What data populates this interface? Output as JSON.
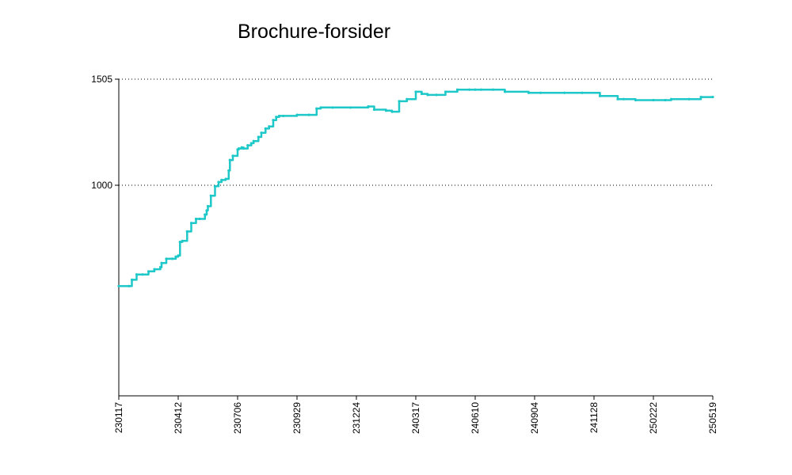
{
  "chart_data": {
    "type": "line",
    "title": "Brochure-forsider",
    "xlabel": "",
    "ylabel": "",
    "x_tick_labels": [
      "230117",
      "230412",
      "230706",
      "230929",
      "231224",
      "240317",
      "240610",
      "240904",
      "241128",
      "250222",
      "250519"
    ],
    "y_tick_labels": [
      "1000",
      "1505"
    ],
    "y_ticks": [
      1000,
      1505
    ],
    "xlim": [
      0,
      10
    ],
    "ylim": [
      0,
      1505
    ],
    "grid": "horizontal dotted at y ticks",
    "line_color": "#1ec8c8",
    "series": [
      {
        "x": [
          0.0,
          0.17,
          0.22,
          0.3,
          0.4,
          0.5,
          0.6,
          0.7,
          0.72,
          0.8,
          0.9,
          0.96,
          1.0,
          1.03,
          1.07,
          1.15,
          1.22,
          1.3,
          1.36,
          1.45,
          1.48,
          1.5,
          1.55,
          1.62,
          1.68,
          1.73,
          1.8,
          1.85,
          1.87,
          1.92,
          2.0,
          2.02,
          2.07,
          2.1,
          2.17,
          2.23,
          2.27,
          2.35,
          2.4,
          2.47,
          2.53,
          2.6,
          2.65,
          2.7,
          2.77,
          3.0,
          3.2,
          3.33,
          3.4,
          3.6,
          3.9,
          4.2,
          4.3,
          4.5,
          4.6,
          4.72,
          4.85,
          5.0,
          5.1,
          5.2,
          5.35,
          5.5,
          5.7,
          5.9,
          6.0,
          6.1,
          6.3,
          6.5,
          6.9,
          7.1,
          7.5,
          7.8,
          8.1,
          8.4,
          8.5,
          8.7,
          9.0,
          9.2,
          9.3,
          9.6,
          9.8,
          10.0
        ],
        "values": [
          520,
          520,
          550,
          575,
          575,
          590,
          600,
          610,
          630,
          650,
          650,
          660,
          665,
          730,
          735,
          780,
          820,
          840,
          840,
          860,
          880,
          900,
          950,
          995,
          1015,
          1025,
          1030,
          1070,
          1120,
          1140,
          1170,
          1175,
          1180,
          1175,
          1190,
          1200,
          1210,
          1230,
          1250,
          1270,
          1280,
          1310,
          1325,
          1330,
          1330,
          1335,
          1335,
          1365,
          1370,
          1370,
          1370,
          1375,
          1360,
          1355,
          1350,
          1400,
          1410,
          1445,
          1435,
          1430,
          1430,
          1445,
          1455,
          1455,
          1455,
          1455,
          1455,
          1445,
          1440,
          1440,
          1440,
          1440,
          1425,
          1410,
          1410,
          1405,
          1405,
          1405,
          1410,
          1410,
          1420,
          1420
        ]
      }
    ]
  }
}
